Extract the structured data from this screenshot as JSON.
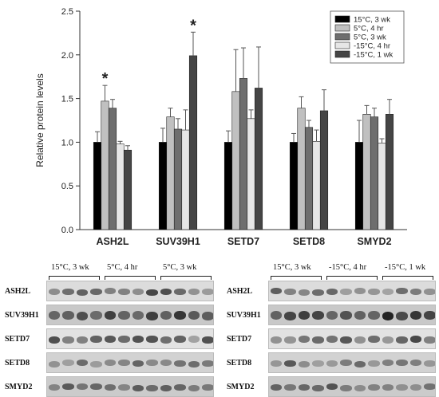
{
  "chart_data": {
    "type": "bar",
    "ylabel": "Relative protein levels",
    "ylim": [
      0,
      2.5
    ],
    "yticks": [
      "0.0",
      "0.5",
      "1.0",
      "1.5",
      "2.0",
      "2.5"
    ],
    "categories": [
      "ASH2L",
      "SUV39H1",
      "SETD7",
      "SETD8",
      "SMYD2"
    ],
    "series": [
      {
        "name": "15°C, 3 wk",
        "color": "#000000",
        "values": [
          1.0,
          1.0,
          1.0,
          1.0,
          1.0
        ],
        "errors": [
          0.12,
          0.16,
          0.13,
          0.1,
          0.25
        ]
      },
      {
        "name": "5°C, 4 hr",
        "color": "#c0c0c0",
        "values": [
          1.47,
          1.29,
          1.58,
          1.39,
          1.32
        ],
        "errors": [
          0.18,
          0.1,
          0.48,
          0.13,
          0.1
        ]
      },
      {
        "name": "5°C, 3 wk",
        "color": "#6e6e6e",
        "values": [
          1.39,
          1.15,
          1.73,
          1.17,
          1.29
        ],
        "errors": [
          0.1,
          0.12,
          0.35,
          0.08,
          0.1
        ]
      },
      {
        "name": "-15°C, 4 hr",
        "color": "#e6e6e6",
        "values": [
          0.98,
          1.14,
          1.27,
          1.01,
          0.99
        ],
        "errors": [
          0.03,
          0.23,
          0.1,
          0.13,
          0.05
        ]
      },
      {
        "name": "-15°C, 1 wk",
        "color": "#454545",
        "values": [
          0.91,
          1.99,
          1.62,
          1.36,
          1.32
        ],
        "errors": [
          0.05,
          0.27,
          0.47,
          0.24,
          0.17
        ]
      }
    ],
    "annotations": [
      {
        "text": "*",
        "category": "ASH2L",
        "series": "5°C, 4 hr"
      },
      {
        "text": "*",
        "category": "SUV39H1",
        "series": "-15°C, 1 wk"
      }
    ],
    "legend_position": "top-right"
  },
  "blots": {
    "left": {
      "groups": [
        "15°C, 3 wk",
        "5°C, 4 hr",
        "5°C, 3 wk"
      ],
      "rows": [
        "ASH2L",
        "SUV39H1",
        "SETD7",
        "SETD8",
        "SMYD2"
      ]
    },
    "right": {
      "groups": [
        "15°C, 3 wk",
        "-15°C, 4 hr",
        "-15°C, 1 wk"
      ],
      "rows": [
        "ASH2L",
        "SUV39H1",
        "SETD7",
        "SETD8",
        "SMYD2"
      ]
    }
  }
}
